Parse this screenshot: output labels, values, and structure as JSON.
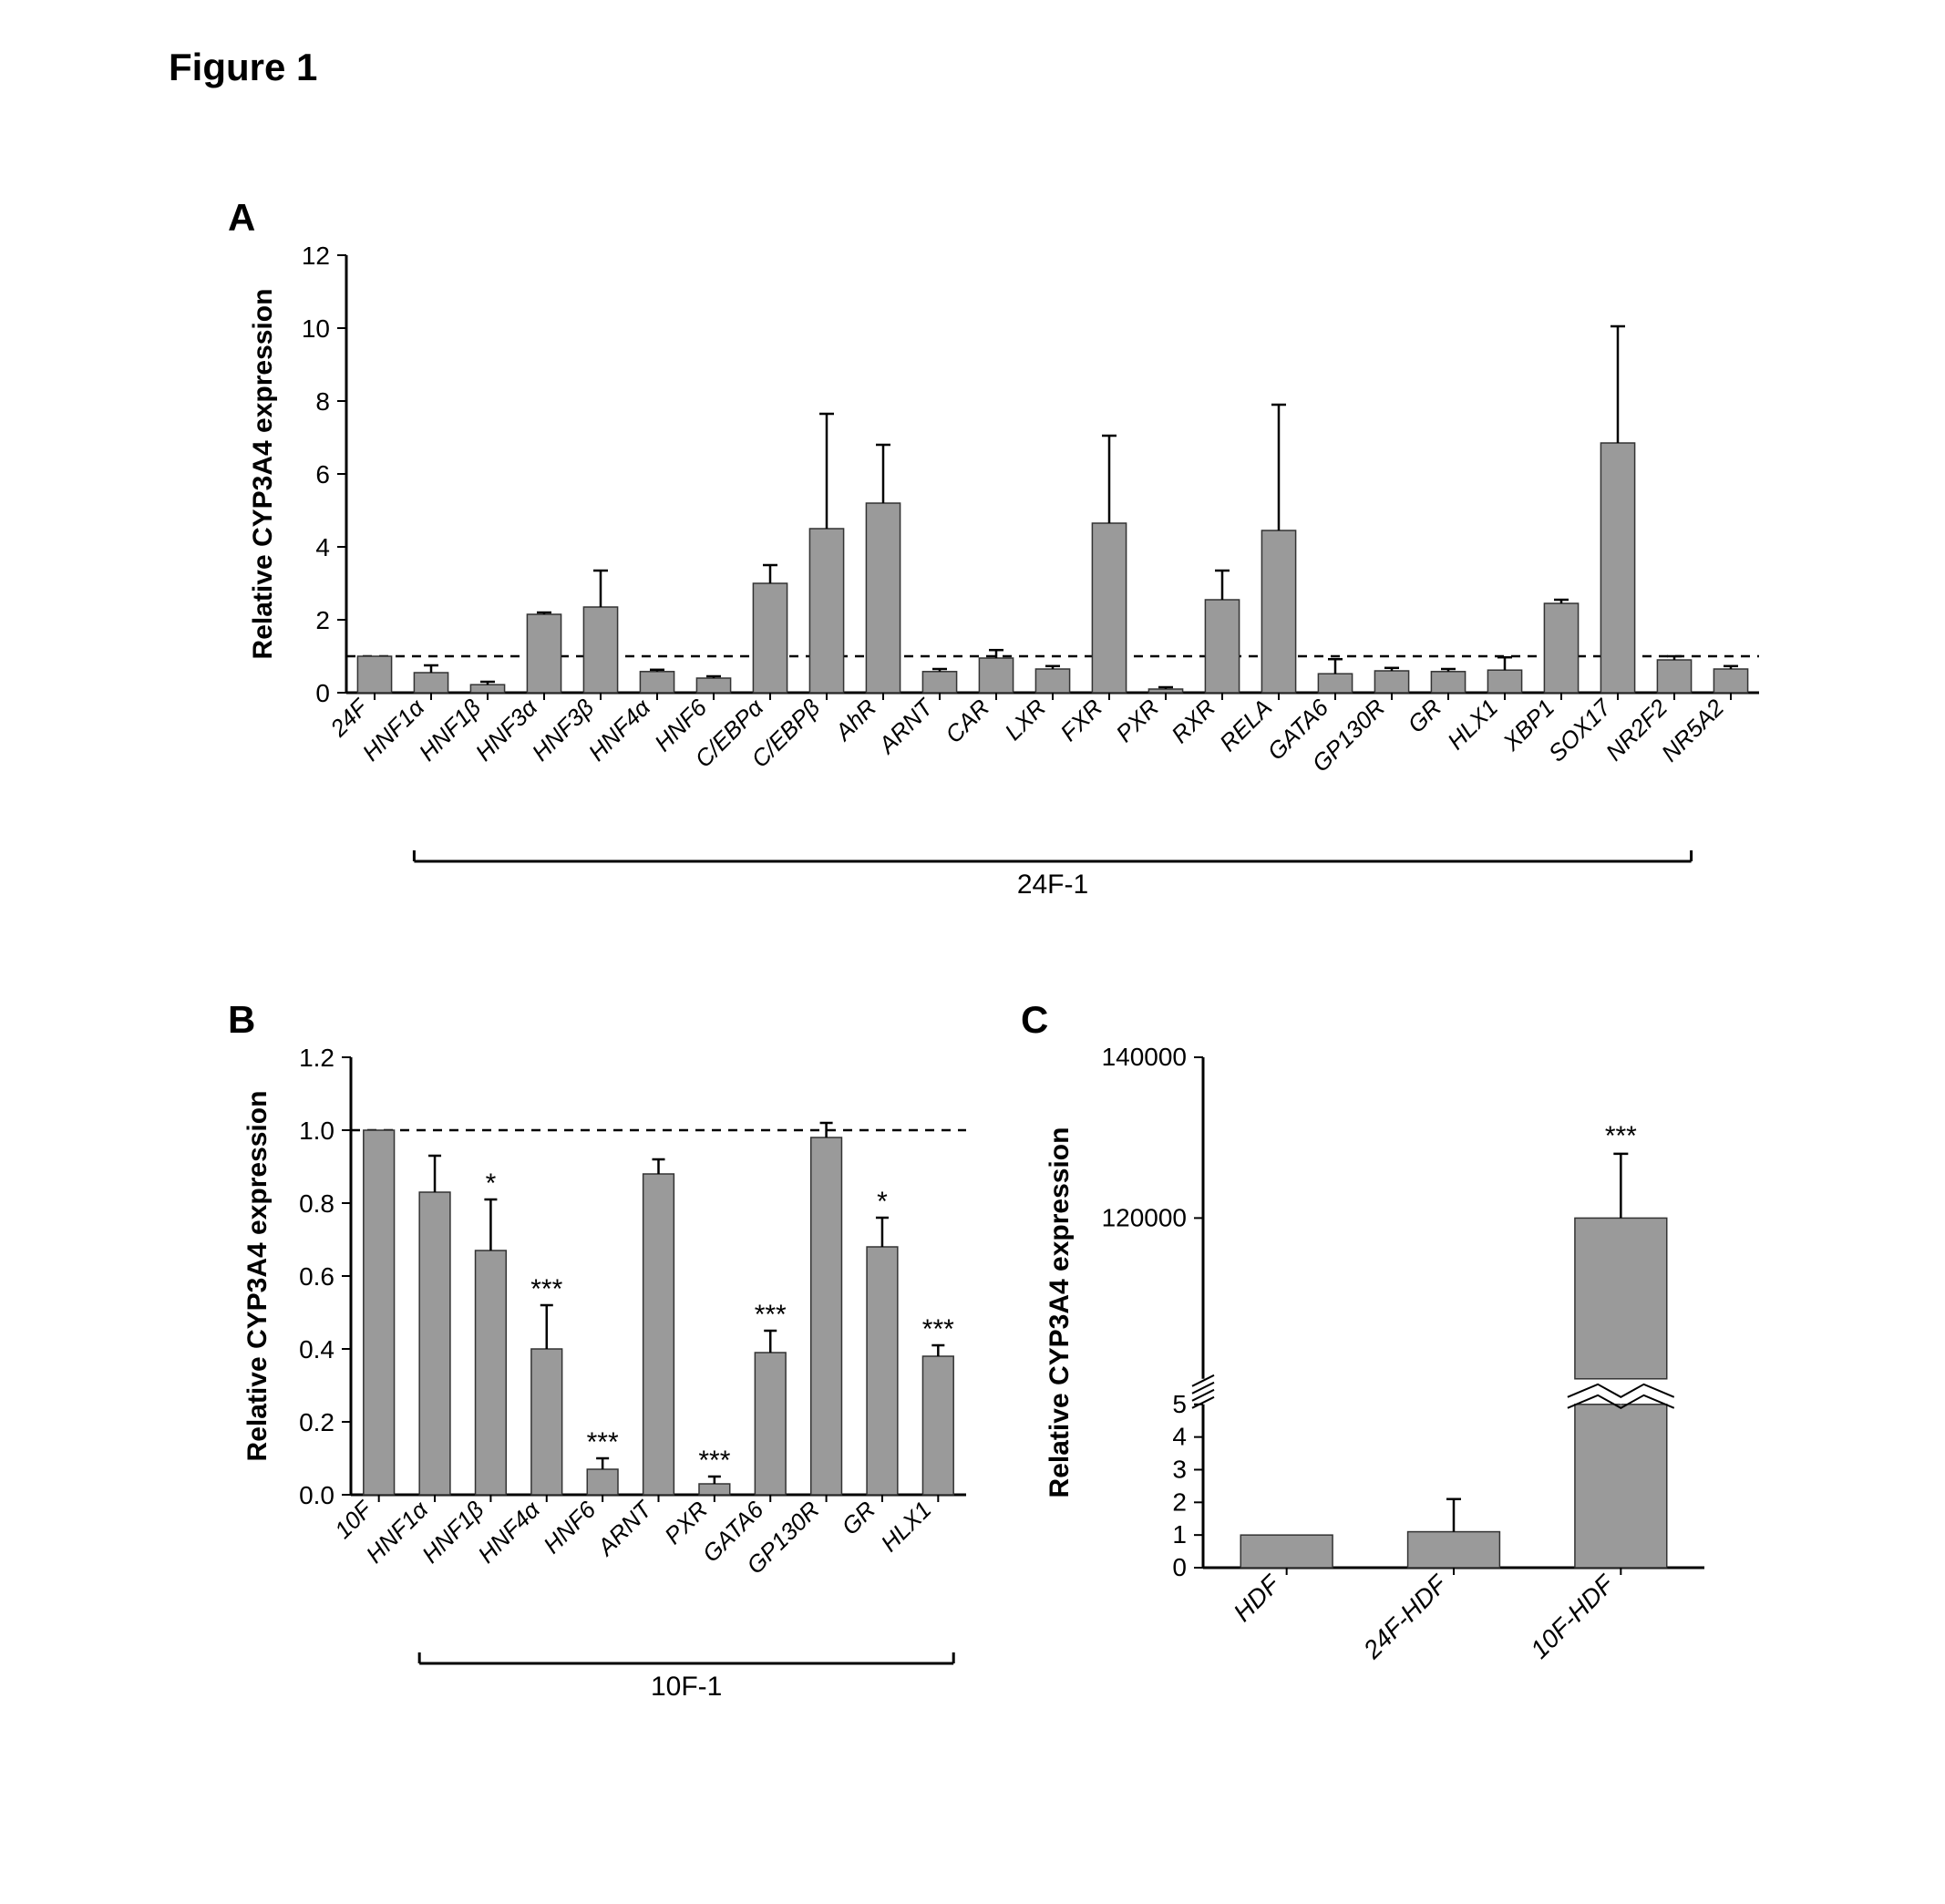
{
  "figure_title": "Figure 1",
  "panel_labels": {
    "A": "A",
    "B": "B",
    "C": "C"
  },
  "colors": {
    "bar_fill": "#9a9a9a",
    "bar_stroke": "#333333",
    "axis": "#000000",
    "background": "#ffffff"
  },
  "chartA": {
    "type": "bar",
    "ylabel": "Relative CYP3A4 expression",
    "ylim": [
      0,
      12
    ],
    "ytick_step": 2,
    "reference_line": 1.0,
    "bracket_label": "24F-1",
    "bracket_start_idx": 1,
    "bracket_end_idx": 23,
    "categories": [
      "24F",
      "HNF1α",
      "HNF1β",
      "HNF3α",
      "HNF3β",
      "HNF4α",
      "HNF6",
      "C/EBPα",
      "C/EBPβ",
      "AhR",
      "ARNT",
      "CAR",
      "LXR",
      "FXR",
      "PXR",
      "RXR",
      "RELA",
      "GATA6",
      "GP130R",
      "GR",
      "HLX1",
      "XBP1",
      "SOX17",
      "NR2F2",
      "NR5A2"
    ],
    "values": [
      1.0,
      0.55,
      0.22,
      2.15,
      2.35,
      0.58,
      0.4,
      3.0,
      4.5,
      5.2,
      0.58,
      0.95,
      0.65,
      4.65,
      0.1,
      2.55,
      4.45,
      0.52,
      0.6,
      0.58,
      0.62,
      2.45,
      6.85,
      0.9,
      0.65
    ],
    "errors": [
      0.0,
      0.2,
      0.08,
      0.05,
      1.0,
      0.05,
      0.05,
      0.5,
      3.15,
      1.6,
      0.07,
      0.22,
      0.08,
      2.4,
      0.05,
      0.8,
      3.45,
      0.4,
      0.08,
      0.07,
      0.35,
      0.1,
      3.2,
      0.1,
      0.08
    ],
    "bar_width": 0.6,
    "label_fontsize": 26,
    "title_fontsize": 42
  },
  "chartB": {
    "type": "bar",
    "ylabel": "Relative CYP3A4 expression",
    "ylim": [
      0,
      1.2
    ],
    "ytick_step": 0.2,
    "reference_line": 1.0,
    "bracket_label": "10F-1",
    "bracket_start_idx": 1,
    "bracket_end_idx": 10,
    "categories": [
      "10F",
      "HNF1α",
      "HNF1β",
      "HNF4α",
      "HNF6",
      "ARNT",
      "PXR",
      "GATA6",
      "GP130R",
      "GR",
      "HLX1"
    ],
    "values": [
      1.0,
      0.83,
      0.67,
      0.4,
      0.07,
      0.88,
      0.03,
      0.39,
      0.98,
      0.68,
      0.38
    ],
    "errors": [
      0.0,
      0.1,
      0.14,
      0.12,
      0.03,
      0.04,
      0.02,
      0.06,
      0.04,
      0.08,
      0.03
    ],
    "sig": [
      "",
      "",
      "*",
      "***",
      "***",
      "",
      "***",
      "***",
      "",
      "*",
      "***"
    ],
    "bar_width": 0.55,
    "label_fontsize": 26
  },
  "chartC": {
    "type": "bar_broken_axis",
    "ylabel": "Relative CYP3A4 expression",
    "ylim_lower": [
      0,
      5
    ],
    "ylim_upper": [
      100000,
      140000
    ],
    "yticks_lower": [
      0,
      1,
      2,
      3,
      4,
      5
    ],
    "yticks_upper": [
      120000,
      140000
    ],
    "categories": [
      "HDF",
      "24F-HDF",
      "10F-HDF"
    ],
    "values": [
      1.0,
      1.1,
      120000
    ],
    "errors": [
      0.0,
      1.0,
      8000
    ],
    "sig": [
      "",
      "",
      "***"
    ],
    "bar_width": 0.55,
    "label_fontsize": 28
  }
}
